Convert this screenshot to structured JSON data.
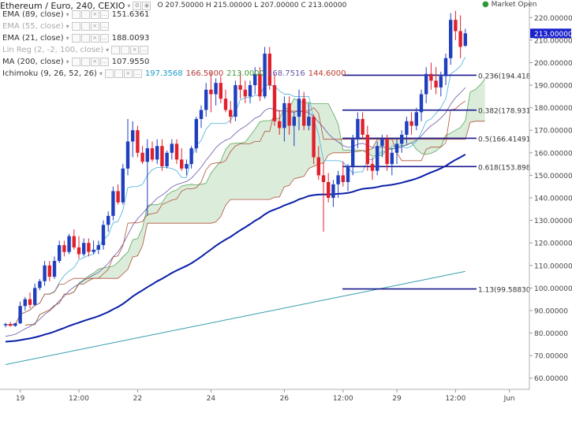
{
  "header": {
    "symbol_title": "Ethereum / Euro, 240, CEXIO",
    "ohlc": "O 207.50000  H 215.00000  L 207.00000  C 213.00000",
    "market_status": "Market Open"
  },
  "legend": [
    {
      "label": "EMA (89, close)",
      "value": "151.6361",
      "faint": false,
      "color": "#1a9ac8"
    },
    {
      "label": "EMA (55, close)",
      "value": "",
      "faint": true,
      "color": "#999999"
    },
    {
      "label": "EMA (21, close)",
      "value": "188.0093",
      "faint": false,
      "color": "#6a55a8"
    },
    {
      "label": "Lin Reg (2, -2, 100, close)",
      "value": "",
      "faint": true,
      "color": "#999999"
    },
    {
      "label": "MA (200, close)",
      "value": "107.9550",
      "faint": false,
      "color": "#33a0a0"
    }
  ],
  "ichimoku": {
    "label": "Ichimoku (9, 26, 52, 26)",
    "values": [
      "197.3568",
      "166.5000",
      "213.0000",
      "168.7516",
      "144.6000"
    ],
    "colors": [
      "#1a9ac8",
      "#b33a3a",
      "#3c9b3c",
      "#6a55a8",
      "#c0392b"
    ]
  },
  "colors": {
    "up": "#1f3fbf",
    "down": "#e0212b",
    "ema89": "#0a1fa8",
    "ema21": "#5bb7e0",
    "ma200": "#3a9fb0",
    "ichimoku_base": "#6a55a8",
    "ichimoku_lag": "#b0533a",
    "cloud_fill": "#cfe6cf",
    "cloud_line": "#5aa95a",
    "fib": "#1a1a8f",
    "price_label_bg": "#1a22cc"
  },
  "chart_data": {
    "type": "candlestick",
    "title": "Ethereum / Euro, 240, CEXIO",
    "ylim": [
      55,
      225
    ],
    "yticks": [
      60,
      70,
      80,
      90,
      100,
      110,
      120,
      130,
      140,
      150,
      160,
      170,
      180,
      190,
      200,
      210,
      220
    ],
    "ytick_labels": [
      "60.00000",
      "70.00000",
      "80.00000",
      "90.00000",
      "100.00000",
      "110.00000",
      "120.00000",
      "130.00000",
      "140.00000",
      "150.00000",
      "160.00000",
      "170.00000",
      "180.00000",
      "190.00000",
      "200.00000",
      "210.00000",
      "220.00000"
    ],
    "xtick_labels": [
      "19",
      "12:00",
      "22",
      "24",
      "26",
      "12:00",
      "29",
      "12:00",
      "Jun"
    ],
    "xtick_index": [
      3,
      15,
      27,
      42,
      57,
      69,
      80,
      92,
      103
    ],
    "current_price": "213.00000",
    "candles": [
      [
        83.5,
        84.5,
        82.5,
        84
      ],
      [
        84,
        85,
        83,
        83.2
      ],
      [
        83.2,
        84.5,
        82.8,
        84.3
      ],
      [
        84.3,
        94,
        84,
        92
      ],
      [
        92,
        96,
        90,
        95
      ],
      [
        95,
        98,
        91,
        92.5
      ],
      [
        92.5,
        102,
        92,
        100
      ],
      [
        100,
        104,
        99,
        103
      ],
      [
        103,
        112,
        101,
        110
      ],
      [
        110,
        112,
        103,
        105
      ],
      [
        105,
        114,
        104,
        112
      ],
      [
        112,
        121,
        111,
        119
      ],
      [
        119,
        121,
        114,
        116
      ],
      [
        116,
        124,
        115,
        123
      ],
      [
        123,
        126,
        117,
        118
      ],
      [
        118,
        123,
        113,
        115
      ],
      [
        115,
        122,
        114,
        120
      ],
      [
        120,
        122,
        114,
        116
      ],
      [
        116,
        121,
        115,
        117
      ],
      [
        117,
        121,
        115,
        119
      ],
      [
        119,
        130,
        117,
        128
      ],
      [
        128,
        134,
        125,
        132
      ],
      [
        132,
        145,
        130,
        143
      ],
      [
        143,
        146,
        137,
        138
      ],
      [
        138,
        155,
        137,
        153
      ],
      [
        153,
        175,
        150,
        165
      ],
      [
        165,
        174,
        158,
        170
      ],
      [
        170,
        172,
        158,
        160
      ],
      [
        160,
        163,
        155,
        156
      ],
      [
        156,
        166,
        132,
        162
      ],
      [
        162,
        165,
        156,
        157
      ],
      [
        157,
        166,
        155,
        163
      ],
      [
        163,
        166,
        152,
        154
      ],
      [
        154,
        161,
        153,
        160
      ],
      [
        160,
        166,
        157,
        164
      ],
      [
        164,
        166,
        155,
        157
      ],
      [
        157,
        162,
        152,
        153
      ],
      [
        153,
        157,
        150,
        155
      ],
      [
        155,
        163,
        153,
        162
      ],
      [
        162,
        176,
        160,
        175
      ],
      [
        175,
        181,
        171,
        179
      ],
      [
        179,
        191,
        176,
        188
      ],
      [
        188,
        196,
        178,
        186
      ],
      [
        186,
        193,
        181,
        191
      ],
      [
        191,
        194,
        182,
        184
      ],
      [
        184,
        188,
        178,
        179
      ],
      [
        179,
        183,
        173,
        176
      ],
      [
        176,
        192,
        174,
        190
      ],
      [
        190,
        196,
        184,
        188
      ],
      [
        188,
        192,
        182,
        185
      ],
      [
        185,
        192,
        182,
        190
      ],
      [
        190,
        198,
        186,
        195
      ],
      [
        195,
        198,
        183,
        185
      ],
      [
        185,
        207,
        184,
        204
      ],
      [
        204,
        207,
        188,
        190
      ],
      [
        190,
        195,
        172,
        174
      ],
      [
        174,
        179,
        168,
        171
      ],
      [
        171,
        185,
        165,
        182
      ],
      [
        182,
        185,
        168,
        172
      ],
      [
        172,
        178,
        163,
        176
      ],
      [
        176,
        188,
        170,
        184
      ],
      [
        184,
        187,
        170,
        172
      ],
      [
        172,
        182,
        170,
        176
      ],
      [
        176,
        177,
        155,
        158
      ],
      [
        158,
        163,
        148,
        150
      ],
      [
        150,
        156,
        125,
        147
      ],
      [
        147,
        151,
        138,
        140
      ],
      [
        140,
        148,
        136,
        146
      ],
      [
        146,
        152,
        140,
        150
      ],
      [
        150,
        156,
        145,
        147
      ],
      [
        147,
        155,
        143,
        154
      ],
      [
        154,
        168,
        150,
        166
      ],
      [
        166,
        178,
        162,
        175
      ],
      [
        175,
        178,
        166,
        168
      ],
      [
        168,
        172,
        152,
        155
      ],
      [
        155,
        158,
        148,
        152
      ],
      [
        152,
        165,
        150,
        163
      ],
      [
        163,
        168,
        158,
        166
      ],
      [
        166,
        168,
        152,
        155
      ],
      [
        155,
        162,
        150,
        160
      ],
      [
        160,
        166,
        155,
        164
      ],
      [
        164,
        170,
        160,
        168
      ],
      [
        168,
        176,
        164,
        174
      ],
      [
        174,
        178,
        168,
        172
      ],
      [
        172,
        180,
        170,
        178
      ],
      [
        178,
        188,
        174,
        186
      ],
      [
        186,
        198,
        182,
        195
      ],
      [
        195,
        200,
        188,
        192
      ],
      [
        192,
        198,
        186,
        189
      ],
      [
        189,
        196,
        185,
        194
      ],
      [
        194,
        204,
        190,
        202
      ],
      [
        202,
        222,
        199,
        219
      ],
      [
        219,
        223,
        210,
        214
      ],
      [
        214,
        221,
        202,
        207
      ],
      [
        207.5,
        215,
        207,
        213
      ]
    ],
    "fib_levels": [
      {
        "label": "0.236(194.418",
        "y": 194.418
      },
      {
        "label": "0.382(178.931",
        "y": 178.931
      },
      {
        "label": "0.5(166.41491",
        "y": 166.41491
      },
      {
        "label": "0.618(153.898",
        "y": 153.898
      },
      {
        "label": "1.13(99.58830",
        "y": 99.5883
      }
    ]
  }
}
